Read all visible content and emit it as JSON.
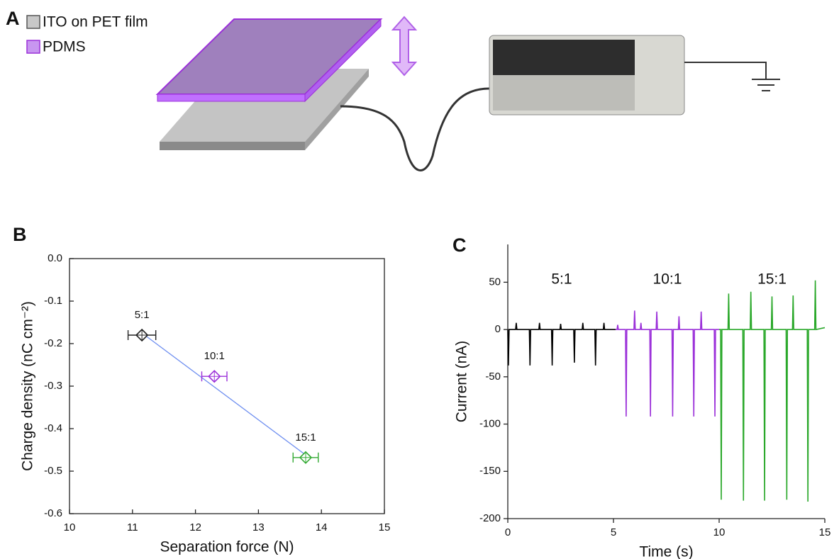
{
  "panel_a": {
    "label": "A",
    "legend": [
      "ITO on PET film",
      "PDMS"
    ]
  },
  "chart_data": [
    {
      "type": "scatter",
      "panel_label": "B",
      "xlabel": "Separation force (N)",
      "ylabel": "Charge density (nC cm⁻²)",
      "x": [
        11.15,
        12.3,
        13.75
      ],
      "y": [
        -0.18,
        -0.277,
        -0.468
      ],
      "xerr": [
        0.22,
        0.2,
        0.2
      ],
      "colors": [
        "#222222",
        "#9b30d9",
        "#33aa33"
      ],
      "point_labels": [
        "5:1",
        "10:1",
        "15:1"
      ],
      "fit": {
        "x": [
          11.15,
          13.75
        ],
        "y": [
          -0.175,
          -0.462
        ],
        "color": "#6f8ff0"
      },
      "xlim": [
        10,
        15
      ],
      "xticks": [
        10,
        11,
        12,
        13,
        14,
        15
      ],
      "ylim": [
        -0.6,
        0
      ],
      "yticks": [
        -0.6,
        -0.5,
        -0.4,
        -0.3,
        -0.2,
        -0.1,
        {
          "value": 0,
          "label": "0.0"
        }
      ]
    },
    {
      "type": "line",
      "panel_label": "C",
      "xlabel": "Time (s)",
      "ylabel": "Current (nA)",
      "series": [
        {
          "name": "5:1",
          "color": "#000000",
          "x": [
            0,
            0.03,
            0.06,
            0.37,
            0.4,
            0.43,
            1.02,
            1.05,
            1.08,
            1.47,
            1.5,
            1.53,
            2.07,
            2.1,
            2.13,
            2.47,
            2.5,
            2.53,
            3.12,
            3.15,
            3.18,
            3.52,
            3.55,
            3.58,
            4.12,
            4.15,
            4.18,
            4.52,
            4.55,
            4.58,
            5.1
          ],
          "values": [
            0,
            -38,
            0,
            0,
            7,
            0,
            0,
            -38,
            0,
            0,
            7,
            0,
            0,
            -38,
            0,
            0,
            6,
            0,
            0,
            -35,
            0,
            0,
            7,
            0,
            0,
            -38,
            0,
            0,
            7,
            0,
            0
          ]
        },
        {
          "name": "10:1",
          "color": "#9b30d9",
          "x": [
            5.1,
            5.17,
            5.2,
            5.23,
            5.57,
            5.6,
            5.63,
            5.97,
            6.0,
            6.03,
            6.27,
            6.3,
            6.33,
            6.72,
            6.75,
            6.78,
            7.02,
            7.05,
            7.08,
            7.77,
            7.8,
            7.83,
            8.07,
            8.1,
            8.13,
            8.77,
            8.8,
            8.83,
            9.12,
            9.15,
            9.18,
            9.77,
            9.8,
            9.83,
            10.0
          ],
          "values": [
            0,
            0,
            5,
            0,
            0,
            -92,
            0,
            0,
            20,
            0,
            0,
            7,
            0,
            0,
            -92,
            0,
            0,
            19,
            0,
            0,
            -92,
            0,
            0,
            14,
            0,
            0,
            -92,
            0,
            0,
            19,
            0,
            0,
            -92,
            0,
            0
          ]
        },
        {
          "name": "15:1",
          "color": "#2aa82a",
          "x": [
            10.0,
            10.07,
            10.1,
            10.13,
            10.42,
            10.45,
            10.48,
            11.12,
            11.15,
            11.18,
            11.47,
            11.5,
            11.53,
            12.12,
            12.15,
            12.18,
            12.47,
            12.5,
            12.53,
            13.17,
            13.2,
            13.23,
            13.47,
            13.5,
            13.53,
            14.17,
            14.2,
            14.23,
            14.52,
            14.55,
            14.58,
            15.0
          ],
          "values": [
            0,
            0,
            -180,
            0,
            0,
            38,
            0,
            0,
            -181,
            0,
            0,
            40,
            0,
            0,
            -181,
            0,
            0,
            35,
            0,
            0,
            -180,
            0,
            0,
            36,
            0,
            0,
            -182,
            0,
            0,
            52,
            0,
            2
          ]
        }
      ],
      "xlim": [
        0,
        15
      ],
      "xticks": [
        0,
        5,
        10,
        15
      ],
      "ylim": [
        -200,
        90
      ],
      "yticks": [
        -200,
        -150,
        -100,
        -50,
        0,
        50
      ]
    }
  ]
}
